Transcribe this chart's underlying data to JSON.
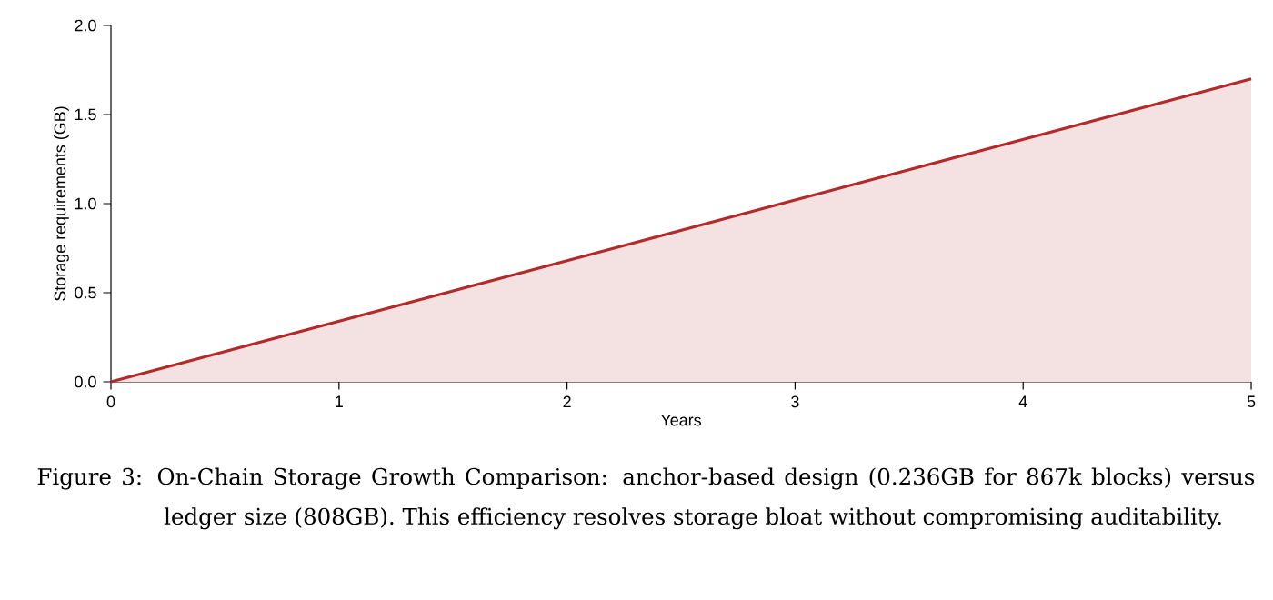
{
  "chart_data": {
    "type": "area",
    "xlabel": "Years",
    "ylabel": "Storage requirements (GB)",
    "x": [
      0,
      1,
      2,
      3,
      4,
      5
    ],
    "series": [
      {
        "color": "#b22a2a",
        "values": [
          0,
          0.34,
          0.68,
          1.02,
          1.36,
          1.7
        ]
      }
    ],
    "xlim": [
      0,
      5
    ],
    "ylim": [
      0,
      2
    ],
    "xticks": [
      0,
      1,
      2,
      3,
      4,
      5
    ],
    "yticks": [
      {
        "value": 0,
        "label": "0.0"
      },
      {
        "value": 0.5,
        "label": "0.5"
      },
      {
        "value": 1,
        "label": "1.0"
      },
      {
        "value": 1.5,
        "label": "1.5"
      },
      {
        "value": 2,
        "label": "2.0"
      }
    ],
    "grid": false,
    "annotations": [
      "Figure 3: On-Chain Storage Growth Comparison: anchor-based design (0.236GB for 867k blocks) versus ledger size (808GB). This efficiency resolves storage bloat without compromising auditability."
    ]
  }
}
